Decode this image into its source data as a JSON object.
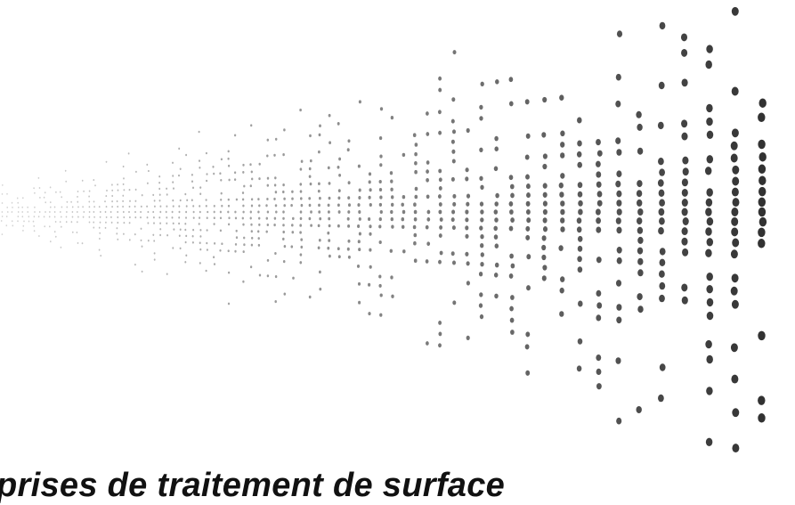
{
  "heading": "prises de traitement de surface"
}
